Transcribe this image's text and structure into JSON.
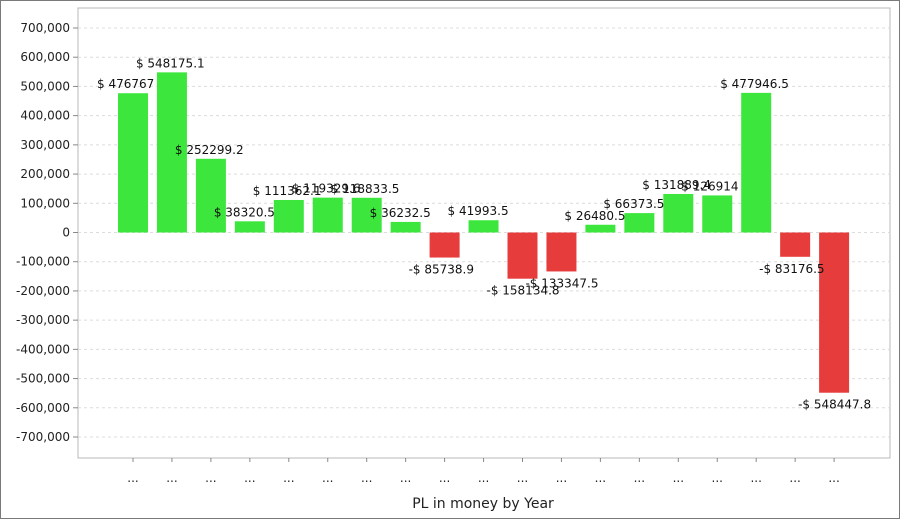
{
  "chart_data": {
    "type": "bar",
    "xlabel": "PL in money by Year",
    "ylim": [
      -700000,
      700000
    ],
    "y_ticks": [
      "700,000",
      "600,000",
      "500,000",
      "400,000",
      "300,000",
      "200,000",
      "100,000",
      "0",
      "-100,000",
      "-200,000",
      "-300,000",
      "-400,000",
      "-500,000",
      "-600,000",
      "-700,000"
    ],
    "grid": true,
    "categories": [
      "...",
      "...",
      "...",
      "...",
      "...",
      "...",
      "...",
      "...",
      "...",
      "...",
      "...",
      "...",
      "...",
      "...",
      "...",
      "...",
      "...",
      "...",
      "..."
    ],
    "values": [
      476767,
      548175.1,
      252299.2,
      38320.5,
      111362.1,
      119329.6,
      118833.5,
      36232.5,
      -85738.9,
      41993.5,
      -158134.8,
      -133347.5,
      26480.5,
      66373.5,
      131889.4,
      126914,
      477946.5,
      -83176.5,
      -548447.8
    ],
    "labels": [
      "$ 476767",
      "$ 548175.1",
      "$ 252299.2",
      "$ 38320.5",
      "$ 111362.1",
      "$ 119329.6",
      "$ 118833.5",
      "$ 36232.5",
      "-$ 85738.9",
      "$ 41993.5",
      "-$ 158134.8",
      "-$ 133347.5",
      "$ 26480.5",
      "$ 66373.5",
      "$ 131889.4",
      "$ 126914",
      "$ 477946.5",
      "-$ 83176.5",
      "-$ 548447.8"
    ],
    "colors": {
      "positive": "#3ce63c",
      "negative": "#e63c3c"
    }
  }
}
